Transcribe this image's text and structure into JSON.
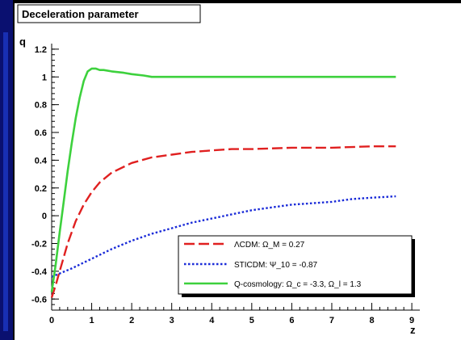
{
  "colors": {
    "slide_background": "#0a1070",
    "slide_accent": "#1e3dd0",
    "canvas": "#ffffff",
    "frame": "#000000",
    "lcdm": "#e02020",
    "sticdm": "#1a2bd8",
    "qcosmology": "#3dd13d"
  },
  "chart_data": {
    "type": "line",
    "title": "Deceleration parameter",
    "xlabel": "z",
    "ylabel": "q",
    "xlim": [
      0,
      9.2
    ],
    "ylim": [
      -0.68,
      1.24
    ],
    "x_ticks": [
      0,
      1,
      2,
      3,
      4,
      5,
      6,
      7,
      8,
      9
    ],
    "y_ticks": [
      1.2,
      1,
      0.8,
      0.6,
      0.4,
      0.2,
      0,
      -0.2,
      -0.4,
      -0.6
    ],
    "x_tick_labels": [
      "0",
      "1",
      "2",
      "3",
      "4",
      "5",
      "6",
      "7",
      "8",
      "9"
    ],
    "y_tick_labels": [
      "1.2",
      "1",
      "0.8",
      "0.6",
      "0.4",
      "0.2",
      "0",
      "-0.2",
      "-0.4",
      "-0.6"
    ],
    "grid": false,
    "legend_position": "bottom-right",
    "series": [
      {
        "name": "ΛCDM: Ω_M = 0.27",
        "style": "dashed",
        "color_key": "lcdm",
        "x": [
          0,
          0.1,
          0.2,
          0.4,
          0.6,
          0.8,
          1.0,
          1.2,
          1.5,
          2.0,
          2.5,
          3.0,
          3.5,
          4.0,
          4.5,
          5.0,
          6.0,
          7.0,
          8.0,
          8.6
        ],
        "y": [
          -0.59,
          -0.5,
          -0.4,
          -0.2,
          -0.04,
          0.08,
          0.17,
          0.24,
          0.31,
          0.38,
          0.42,
          0.44,
          0.46,
          0.47,
          0.48,
          0.48,
          0.49,
          0.49,
          0.5,
          0.5
        ]
      },
      {
        "name": "STICDM: Ψ_10 = -0.87",
        "style": "dotted",
        "color_key": "sticdm",
        "x": [
          0,
          0.5,
          1.0,
          1.5,
          2.0,
          2.5,
          3.0,
          3.5,
          4.0,
          4.5,
          5.0,
          5.5,
          6.0,
          6.5,
          7.0,
          7.5,
          8.0,
          8.6
        ],
        "y": [
          -0.44,
          -0.38,
          -0.31,
          -0.24,
          -0.18,
          -0.13,
          -0.09,
          -0.05,
          -0.02,
          0.01,
          0.04,
          0.06,
          0.08,
          0.09,
          0.1,
          0.12,
          0.13,
          0.14
        ]
      },
      {
        "name": "Q-cosmology: Ω_c = -3.3, Ω_l = 1.3",
        "style": "solid",
        "color_key": "qcosmology",
        "x": [
          0,
          0.1,
          0.2,
          0.3,
          0.4,
          0.5,
          0.6,
          0.7,
          0.8,
          0.9,
          1.0,
          1.1,
          1.2,
          1.3,
          1.5,
          1.8,
          2.0,
          2.3,
          2.5,
          3.0,
          4.0,
          5.0,
          6.0,
          7.0,
          8.0,
          8.6
        ],
        "y": [
          -0.55,
          -0.35,
          -0.12,
          0.1,
          0.32,
          0.52,
          0.7,
          0.85,
          0.97,
          1.04,
          1.06,
          1.06,
          1.05,
          1.05,
          1.04,
          1.03,
          1.02,
          1.01,
          1.0,
          1.0,
          1.0,
          1.0,
          1.0,
          1.0,
          1.0,
          1.0
        ]
      }
    ]
  }
}
